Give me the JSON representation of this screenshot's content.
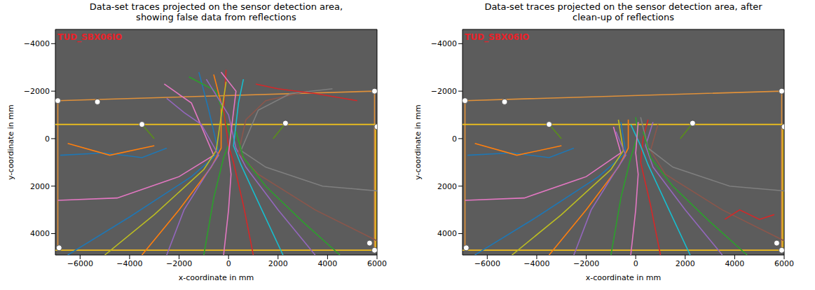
{
  "chart_data": [
    {
      "type": "line",
      "title": "Data-set traces projected on the sensor detection area, showing false data from reflections",
      "annotation": "TUD_SBX06IO",
      "x_label": "x-coordinate in mm",
      "y_label": "y-coordinate in mm",
      "xlim": [
        -7000,
        6000
      ],
      "xticks": [
        {
          "value": -6000,
          "label": "−6000"
        },
        {
          "value": -4000,
          "label": "−4000"
        },
        {
          "value": -2000,
          "label": "−2000"
        },
        0,
        2000,
        4000,
        6000
      ],
      "ylim": [
        4900,
        -4600
      ],
      "yticks": [
        {
          "value": -4000,
          "label": "−4000"
        },
        {
          "value": -2000,
          "label": "−2000"
        },
        0,
        2000,
        4000
      ],
      "grid": false,
      "series": [
        {
          "type": "line",
          "color": "#e0913a",
          "x": [
            -6900,
            5900,
            5900,
            -6900,
            -6900
          ],
          "values": [
            -1600,
            -2000,
            4700,
            4700,
            -1600
          ]
        },
        {
          "type": "line",
          "color": "#f5c518",
          "x": [
            -7000,
            5950,
            5950,
            -7000
          ],
          "values": [
            -600,
            -600,
            4700,
            4700
          ]
        },
        {
          "type": "line",
          "color": "#5a8f1a",
          "x": [
            -3500,
            -3000
          ],
          "values": [
            -600,
            0
          ]
        },
        {
          "type": "line",
          "color": "#5a8f1a",
          "x": [
            2300,
            1800
          ],
          "values": [
            -650,
            0
          ]
        },
        {
          "type": "line",
          "color": "#1f77b4",
          "x": [
            -6500,
            -4000,
            -1500,
            -400,
            -800,
            -1200
          ],
          "values": [
            4900,
            3300,
            1600,
            600,
            -1200,
            -2800
          ]
        },
        {
          "type": "line",
          "color": "#ff7f0e",
          "x": [
            -3500,
            -2000,
            -700,
            -300,
            -300,
            -600
          ],
          "values": [
            4900,
            3000,
            1200,
            400,
            -1500,
            -2700
          ]
        },
        {
          "type": "line",
          "color": "#2ca02c",
          "x": [
            -1000,
            -600,
            -200,
            100,
            -500,
            -1600
          ],
          "values": [
            4900,
            2500,
            800,
            0,
            -2000,
            -2600
          ]
        },
        {
          "type": "line",
          "color": "#d62728",
          "x": [
            1000,
            600,
            200,
            0,
            -200,
            -100
          ],
          "values": [
            4900,
            2800,
            1000,
            300,
            -1200,
            -2900
          ]
        },
        {
          "type": "line",
          "color": "#9467bd",
          "x": [
            3500,
            2000,
            700,
            300,
            0,
            -900
          ],
          "values": [
            4900,
            3000,
            1200,
            400,
            -1000,
            -2500
          ]
        },
        {
          "type": "line",
          "color": "#8c564b",
          "x": [
            6000,
            3500,
            1200,
            400,
            700,
            1500,
            3200
          ],
          "values": [
            4300,
            3000,
            1500,
            600,
            -800,
            -1600,
            -2000
          ]
        },
        {
          "type": "line",
          "color": "#e377c2",
          "x": [
            -6900,
            -4500,
            -2000,
            -600,
            -1500,
            -2600
          ],
          "values": [
            2600,
            2500,
            1600,
            700,
            -1500,
            -2300
          ]
        },
        {
          "type": "line",
          "color": "#7f7f7f",
          "x": [
            6000,
            3800,
            1500,
            500,
            1200,
            2500,
            4200
          ],
          "values": [
            2200,
            2000,
            1200,
            500,
            -1200,
            -1900,
            -2100
          ]
        },
        {
          "type": "line",
          "color": "#bcbd22",
          "x": [
            -5000,
            -3000,
            -1000,
            -500,
            -100
          ],
          "values": [
            4900,
            3200,
            1300,
            500,
            -2400
          ]
        },
        {
          "type": "line",
          "color": "#17becf",
          "x": [
            2200,
            1300,
            500,
            200,
            400,
            600
          ],
          "values": [
            4900,
            2900,
            1100,
            300,
            -1500,
            -2500
          ]
        },
        {
          "type": "line",
          "color": "#1f77b4",
          "x": [
            -6800,
            -5000,
            -3500,
            -2500
          ],
          "values": [
            700,
            600,
            800,
            400
          ]
        },
        {
          "type": "line",
          "color": "#ff7f0e",
          "x": [
            -6500,
            -4800,
            -3000
          ],
          "values": [
            200,
            700,
            300
          ]
        },
        {
          "type": "line",
          "color": "#d62728",
          "x": [
            5200,
            3500,
            2000,
            1100
          ],
          "values": [
            -1600,
            -1900,
            -2100,
            -2300
          ]
        },
        {
          "type": "line",
          "color": "#2ca02c",
          "x": [
            4500,
            3000,
            1500,
            600,
            300
          ],
          "values": [
            4900,
            3500,
            2000,
            800,
            -300
          ]
        },
        {
          "type": "line",
          "color": "#9467bd",
          "x": [
            -2500,
            -1800,
            -900,
            -400,
            -1100,
            -1800,
            -2500
          ],
          "values": [
            4900,
            3000,
            1500,
            700,
            -600,
            -1100,
            -1700
          ]
        },
        {
          "type": "line",
          "color": "#e377c2",
          "x": [
            -200,
            0,
            100,
            0,
            300,
            -300
          ],
          "values": [
            4900,
            3000,
            1500,
            600,
            -2000,
            -2800
          ]
        },
        {
          "type": "scatter",
          "marker": "circle",
          "color": "#ffffff",
          "x": [
            -6900,
            -5300,
            -3500,
            2300,
            5900,
            6000,
            5700,
            5900,
            -6850
          ],
          "values": [
            -1600,
            -1550,
            -600,
            -650,
            -2000,
            -500,
            4400,
            4700,
            4600
          ]
        }
      ]
    },
    {
      "type": "line",
      "title": "Data-set traces projected on the sensor detection area, after clean-up of reflections",
      "annotation": "TUD_SBX06IO",
      "x_label": "x-coordinate in mm",
      "y_label": "y-coordinate in mm",
      "xlim": [
        -7000,
        6000
      ],
      "xticks": [
        {
          "value": -6000,
          "label": "−6000"
        },
        {
          "value": -4000,
          "label": "−4000"
        },
        {
          "value": -2000,
          "label": "−2000"
        },
        0,
        2000,
        4000,
        6000
      ],
      "ylim": [
        4900,
        -4600
      ],
      "yticks": [
        {
          "value": -4000,
          "label": "−4000"
        },
        {
          "value": -2000,
          "label": "−2000"
        },
        0,
        2000,
        4000
      ],
      "grid": false,
      "series": [
        {
          "type": "line",
          "color": "#e0913a",
          "x": [
            -6900,
            5900,
            5900,
            -6900,
            -6900
          ],
          "values": [
            -1600,
            -2000,
            4700,
            4700,
            -1600
          ]
        },
        {
          "type": "line",
          "color": "#f5c518",
          "x": [
            -7000,
            5950,
            5950,
            -7000
          ],
          "values": [
            -600,
            -600,
            4700,
            4700
          ]
        },
        {
          "type": "line",
          "color": "#5a8f1a",
          "x": [
            -3500,
            -3000
          ],
          "values": [
            -600,
            0
          ]
        },
        {
          "type": "line",
          "color": "#5a8f1a",
          "x": [
            2300,
            1800
          ],
          "values": [
            -650,
            0
          ]
        },
        {
          "type": "line",
          "color": "#1f77b4",
          "x": [
            -6500,
            -4000,
            -1500,
            -400,
            -600
          ],
          "values": [
            4900,
            3300,
            1600,
            600,
            -700
          ]
        },
        {
          "type": "line",
          "color": "#ff7f0e",
          "x": [
            -3500,
            -2000,
            -700,
            -300,
            -300
          ],
          "values": [
            4900,
            3000,
            1200,
            400,
            -800
          ]
        },
        {
          "type": "line",
          "color": "#2ca02c",
          "x": [
            -1000,
            -600,
            -200,
            100,
            0
          ],
          "values": [
            4900,
            2500,
            800,
            -200,
            -900
          ]
        },
        {
          "type": "line",
          "color": "#d62728",
          "x": [
            1000,
            600,
            200,
            300,
            500
          ],
          "values": [
            4900,
            2800,
            1000,
            0,
            -800
          ]
        },
        {
          "type": "line",
          "color": "#9467bd",
          "x": [
            3500,
            2000,
            700,
            400,
            700
          ],
          "values": [
            4900,
            3000,
            1200,
            300,
            -700
          ]
        },
        {
          "type": "line",
          "color": "#8c564b",
          "x": [
            6000,
            3500,
            1200,
            600,
            900
          ],
          "values": [
            4300,
            3000,
            1500,
            500,
            -600
          ]
        },
        {
          "type": "line",
          "color": "#e377c2",
          "x": [
            -6900,
            -4500,
            -2000,
            -600,
            -900
          ],
          "values": [
            2600,
            2500,
            1600,
            600,
            -500
          ]
        },
        {
          "type": "line",
          "color": "#7f7f7f",
          "x": [
            6000,
            3800,
            1500,
            500,
            200
          ],
          "values": [
            2200,
            2000,
            1200,
            400,
            -900
          ]
        },
        {
          "type": "line",
          "color": "#bcbd22",
          "x": [
            -5000,
            -3000,
            -1000,
            -500,
            -700
          ],
          "values": [
            4900,
            3200,
            1300,
            500,
            -800
          ]
        },
        {
          "type": "line",
          "color": "#17becf",
          "x": [
            2200,
            1300,
            500,
            200,
            -200
          ],
          "values": [
            4900,
            2900,
            1100,
            300,
            -600
          ]
        },
        {
          "type": "line",
          "color": "#1f77b4",
          "x": [
            -6800,
            -5000,
            -3500,
            -2500
          ],
          "values": [
            700,
            600,
            800,
            400
          ]
        },
        {
          "type": "line",
          "color": "#ff7f0e",
          "x": [
            -6500,
            -4800,
            -3000
          ],
          "values": [
            200,
            700,
            300
          ]
        },
        {
          "type": "line",
          "color": "#d62728",
          "x": [
            5600,
            5000,
            4200,
            3600
          ],
          "values": [
            3200,
            3400,
            3000,
            3400
          ]
        },
        {
          "type": "line",
          "color": "#2ca02c",
          "x": [
            4500,
            3000,
            1500,
            600,
            300
          ],
          "values": [
            4900,
            3500,
            2000,
            800,
            -300
          ]
        },
        {
          "type": "line",
          "color": "#9467bd",
          "x": [
            -2500,
            -1800,
            -900,
            -400,
            -800
          ],
          "values": [
            4900,
            3000,
            1500,
            700,
            -300
          ]
        },
        {
          "type": "line",
          "color": "#e377c2",
          "x": [
            -200,
            0,
            100,
            0,
            100
          ],
          "values": [
            4900,
            3000,
            1500,
            600,
            -700
          ]
        },
        {
          "type": "scatter",
          "marker": "circle",
          "color": "#ffffff",
          "x": [
            -6900,
            -5300,
            -3500,
            2300,
            5900,
            6000,
            5700,
            5900,
            -6850
          ],
          "values": [
            -1600,
            -1550,
            -600,
            -650,
            -2000,
            -500,
            4400,
            4700,
            4600
          ]
        }
      ]
    }
  ]
}
